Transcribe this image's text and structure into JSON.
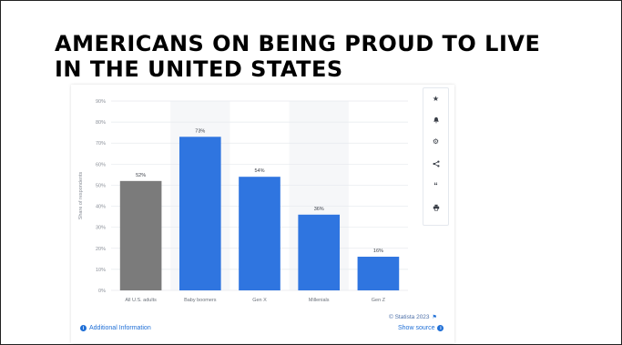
{
  "slide": {
    "title_line1": "AMERICANS ON BEING PROUD TO LIVE",
    "title_line2": "IN THE UNITED STATES"
  },
  "chart_data": {
    "type": "bar",
    "categories": [
      "All U.S. adults",
      "Baby boomers",
      "Gen X",
      "Millenials",
      "Gen Z"
    ],
    "values": [
      52,
      73,
      54,
      36,
      16
    ],
    "value_labels": [
      "52%",
      "73%",
      "54%",
      "36%",
      "16%"
    ],
    "bar_colors": [
      "#7b7b7b",
      "#2f75e0",
      "#2f75e0",
      "#2f75e0",
      "#2f75e0"
    ],
    "ylabel": "Share of respondents",
    "ylim": [
      0,
      90
    ],
    "yticks": [
      0,
      10,
      20,
      30,
      40,
      50,
      60,
      70,
      80,
      90
    ],
    "ytick_labels": [
      "0%",
      "10%",
      "20%",
      "30%",
      "40%",
      "50%",
      "60%",
      "70%",
      "80%",
      "90%"
    ],
    "grid": true
  },
  "toolbar": {
    "icons": [
      "star-icon",
      "bell-icon",
      "gear-icon",
      "share-icon",
      "quote-icon",
      "print-icon"
    ]
  },
  "footer": {
    "additional_info": "Additional Information",
    "copyright": "© Statista 2023",
    "show_source": "Show source"
  },
  "colors": {
    "accent": "#1f6fd6",
    "bar_primary": "#2f75e0",
    "bar_gray": "#7b7b7b"
  }
}
